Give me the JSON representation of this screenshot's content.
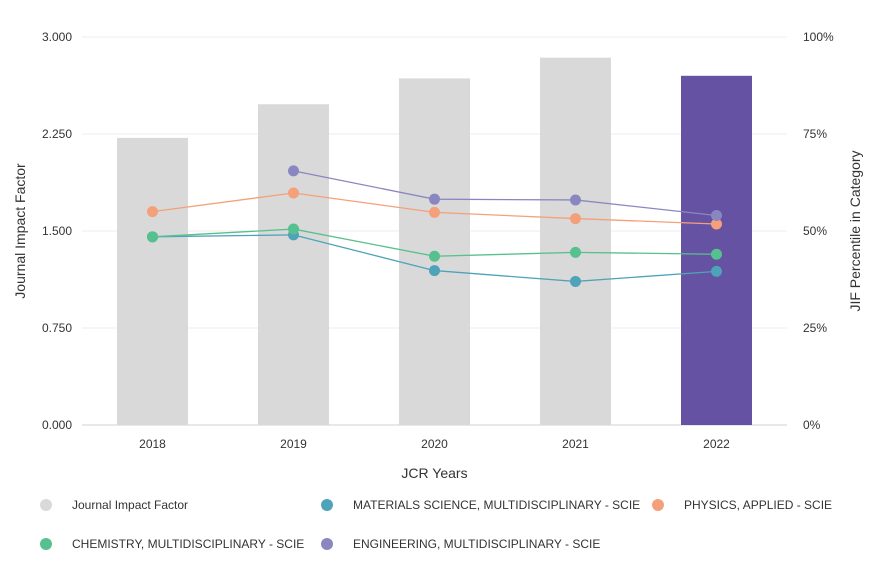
{
  "chart_data": {
    "type": "bar+line",
    "categories": [
      "2018",
      "2019",
      "2020",
      "2021",
      "2022"
    ],
    "xlabel": "JCR Years",
    "ylabel_left": "Journal Impact Factor",
    "ylabel_right": "JIF Percentile in Category",
    "ylim_left": [
      0,
      3.0
    ],
    "ylim_right": [
      0,
      100
    ],
    "yticks_left": [
      "0.000",
      "0.750",
      "1.500",
      "2.250",
      "3.000"
    ],
    "yticks_right": [
      "0%",
      "25%",
      "50%",
      "75%",
      "100%"
    ],
    "bars": {
      "name": "Journal Impact Factor",
      "values": [
        2.22,
        2.48,
        2.68,
        2.84,
        2.7
      ],
      "colors": [
        "#d9d9d9",
        "#d9d9d9",
        "#d9d9d9",
        "#d9d9d9",
        "#6652a2"
      ]
    },
    "series": [
      {
        "name": "MATERIALS SCIENCE, MULTIDISCIPLINARY - SCIE",
        "color": "#4fa3b8",
        "values": [
          48.5,
          49.0,
          39.8,
          37.0,
          39.6
        ]
      },
      {
        "name": "PHYSICS, APPLIED - SCIE",
        "color": "#f4a07a",
        "values": [
          55.0,
          59.8,
          54.8,
          53.2,
          51.8
        ]
      },
      {
        "name": "CHEMISTRY, MULTIDISCIPLINARY - SCIE",
        "color": "#56c08e",
        "values": [
          48.5,
          50.5,
          43.5,
          44.5,
          44.0
        ]
      },
      {
        "name": "ENGINEERING, MULTIDISCIPLINARY - SCIE",
        "color": "#8a87c0",
        "values": [
          null,
          65.5,
          58.2,
          58.0,
          54.0
        ]
      }
    ]
  },
  "legend": {
    "items": [
      {
        "label": "Journal Impact Factor",
        "color": "#d9d9d9"
      },
      {
        "label": "MATERIALS SCIENCE, MULTIDISCIPLINARY - SCIE",
        "color": "#4fa3b8"
      },
      {
        "label": "PHYSICS, APPLIED - SCIE",
        "color": "#f4a07a"
      },
      {
        "label": "CHEMISTRY, MULTIDISCIPLINARY - SCIE",
        "color": "#56c08e"
      },
      {
        "label": "ENGINEERING, MULTIDISCIPLINARY - SCIE",
        "color": "#8a87c0"
      }
    ]
  }
}
